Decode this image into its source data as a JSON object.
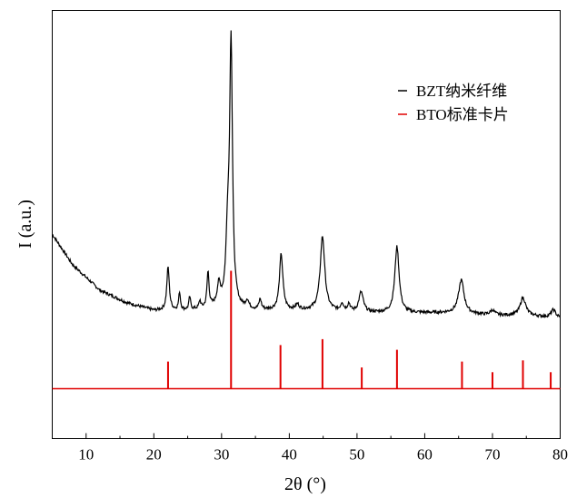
{
  "chart_data": {
    "type": "line",
    "title": "",
    "xlabel": "2θ (°)",
    "ylabel": "I (a.u.)",
    "xlim": [
      5,
      80
    ],
    "xticks": [
      10,
      20,
      30,
      40,
      50,
      60,
      70,
      80
    ],
    "yticks": [],
    "grid": false,
    "legend": {
      "position": "top-right",
      "entries": [
        {
          "name": "BZT纳米纤维",
          "color": "#000000"
        },
        {
          "name": "BTO标准卡片",
          "color": "#e00000"
        }
      ]
    },
    "series": [
      {
        "name": "BZT纳米纤维",
        "kind": "line",
        "color": "#000000",
        "background": [
          [
            5,
            0.76
          ],
          [
            8,
            0.64
          ],
          [
            12,
            0.54
          ],
          [
            16,
            0.49
          ],
          [
            20,
            0.46
          ],
          [
            25,
            0.46
          ],
          [
            30,
            0.47
          ],
          [
            35,
            0.46
          ],
          [
            40,
            0.46
          ],
          [
            45,
            0.46
          ],
          [
            50,
            0.45
          ],
          [
            55,
            0.45
          ],
          [
            60,
            0.45
          ],
          [
            65,
            0.45
          ],
          [
            70,
            0.44
          ],
          [
            75,
            0.44
          ],
          [
            80,
            0.43
          ]
        ],
        "peaks": [
          {
            "x": 22.1,
            "height": 0.17,
            "width": 0.22
          },
          {
            "x": 23.8,
            "height": 0.07,
            "width": 0.15
          },
          {
            "x": 25.3,
            "height": 0.05,
            "width": 0.15
          },
          {
            "x": 26.8,
            "height": 0.03,
            "width": 0.15
          },
          {
            "x": 28.0,
            "height": 0.14,
            "width": 0.18
          },
          {
            "x": 29.6,
            "height": 0.08,
            "width": 0.3
          },
          {
            "x": 30.9,
            "height": 0.25,
            "width": 0.3
          },
          {
            "x": 31.4,
            "height": 1.03,
            "width": 0.25
          },
          {
            "x": 33.8,
            "height": 0.03,
            "width": 0.25
          },
          {
            "x": 35.7,
            "height": 0.04,
            "width": 0.2
          },
          {
            "x": 38.8,
            "height": 0.22,
            "width": 0.3
          },
          {
            "x": 41.2,
            "height": 0.02,
            "width": 0.3
          },
          {
            "x": 44.9,
            "height": 0.29,
            "width": 0.4
          },
          {
            "x": 47.8,
            "height": 0.03,
            "width": 0.25
          },
          {
            "x": 48.8,
            "height": 0.03,
            "width": 0.25
          },
          {
            "x": 50.6,
            "height": 0.08,
            "width": 0.4
          },
          {
            "x": 55.9,
            "height": 0.26,
            "width": 0.38
          },
          {
            "x": 65.4,
            "height": 0.13,
            "width": 0.48
          },
          {
            "x": 70.0,
            "height": 0.02,
            "width": 0.4
          },
          {
            "x": 74.5,
            "height": 0.07,
            "width": 0.48
          },
          {
            "x": 79.0,
            "height": 0.03,
            "width": 0.4
          }
        ]
      },
      {
        "name": "BTO标准卡片",
        "kind": "stick",
        "color": "#e00000",
        "baseline": 0,
        "x": [
          22.1,
          31.4,
          38.7,
          44.9,
          50.7,
          55.9,
          65.5,
          70.0,
          74.5,
          78.6
        ],
        "values": [
          0.23,
          1.0,
          0.37,
          0.42,
          0.18,
          0.33,
          0.23,
          0.14,
          0.24,
          0.14
        ]
      }
    ]
  }
}
